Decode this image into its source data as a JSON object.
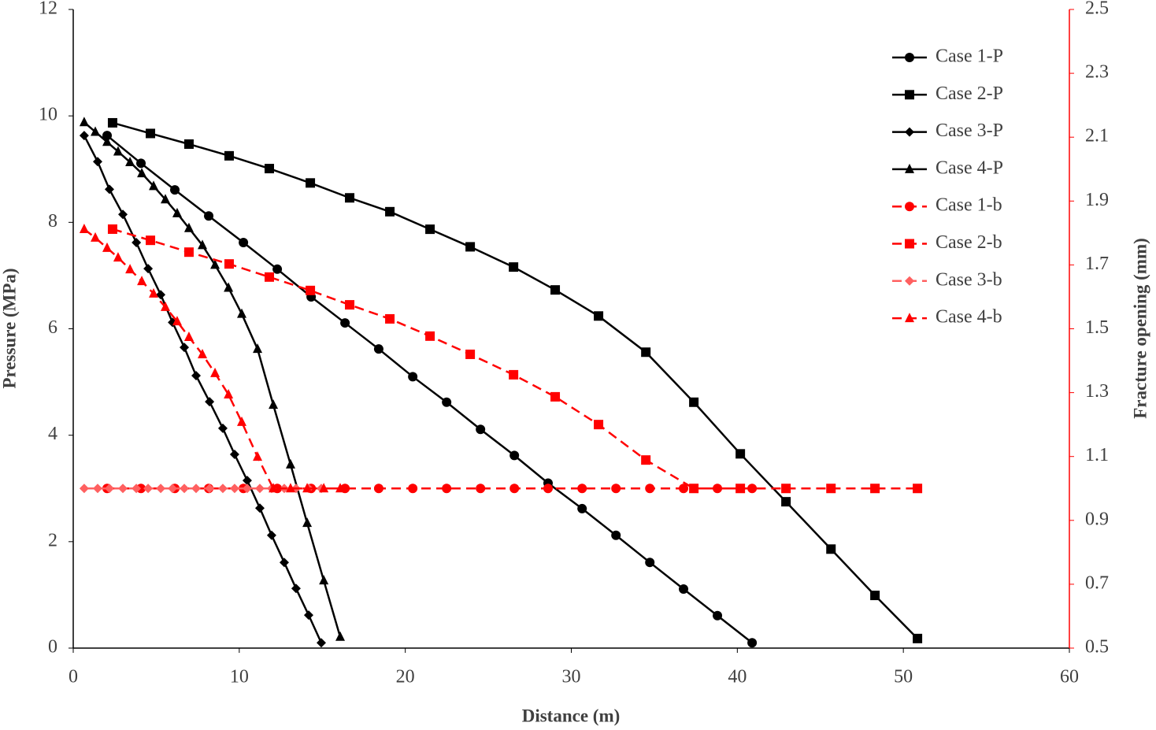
{
  "chart_data": {
    "type": "line",
    "xlabel": "Distance (m)",
    "ylabel": "Pressure (MPa)",
    "y2label": "Fracture opening (mm)",
    "xlim": [
      0,
      60
    ],
    "xticks": [
      0,
      10,
      20,
      30,
      40,
      50,
      60
    ],
    "ylim": [
      0,
      12
    ],
    "yticks": [
      0,
      2,
      4,
      6,
      8,
      10,
      12
    ],
    "y2lim": [
      0.5,
      2.5
    ],
    "y2ticks": [
      0.5,
      0.7,
      0.9,
      1.1,
      1.3,
      1.5,
      1.7,
      1.9,
      2.1,
      2.3,
      2.5
    ],
    "y2color": "#ff0000",
    "legend": "upper right",
    "series": [
      {
        "name": "Case 1-P",
        "color": "#000000",
        "marker": "circle",
        "linestyle": "solid",
        "x": [
          2.04,
          4.08,
          6.12,
          8.16,
          10.25,
          12.29,
          14.33,
          16.37,
          18.4,
          20.45,
          22.49,
          24.53,
          26.57,
          28.6,
          30.65,
          32.69,
          34.73,
          36.76,
          38.8,
          40.89
        ],
        "values": [
          9.63,
          9.11,
          8.61,
          8.12,
          7.62,
          7.12,
          6.6,
          6.11,
          5.62,
          5.1,
          4.62,
          4.11,
          3.62,
          3.1,
          2.62,
          2.12,
          1.61,
          1.11,
          0.61,
          0.1
        ]
      },
      {
        "name": "Case 2-P",
        "color": "#000000",
        "marker": "square",
        "linestyle": "solid",
        "x": [
          2.37,
          4.65,
          6.97,
          9.39,
          11.81,
          14.28,
          16.65,
          19.07,
          21.49,
          23.91,
          26.52,
          29.03,
          31.64,
          34.49,
          37.38,
          40.18,
          42.93,
          45.64,
          48.29,
          50.85
        ],
        "values": [
          9.87,
          9.67,
          9.47,
          9.25,
          9.01,
          8.74,
          8.46,
          8.2,
          7.87,
          7.54,
          7.16,
          6.73,
          6.24,
          5.56,
          4.62,
          3.65,
          2.75,
          1.86,
          0.99,
          0.18
        ]
      },
      {
        "name": "Case 3-P",
        "color": "#000000",
        "marker": "diamond",
        "linestyle": "solid",
        "x": [
          0.66,
          1.47,
          2.18,
          2.99,
          3.8,
          4.51,
          5.27,
          5.98,
          6.69,
          7.4,
          8.21,
          9.01,
          9.72,
          10.48,
          11.24,
          11.95,
          12.71,
          13.42,
          14.18,
          14.94
        ],
        "values": [
          9.63,
          9.14,
          8.62,
          8.15,
          7.62,
          7.13,
          6.64,
          6.12,
          5.65,
          5.12,
          4.63,
          4.13,
          3.64,
          3.15,
          2.63,
          2.12,
          1.61,
          1.12,
          0.62,
          0.1
        ]
      },
      {
        "name": "Case 4-P",
        "color": "#000000",
        "marker": "triangle",
        "linestyle": "solid",
        "x": [
          0.66,
          1.33,
          2.04,
          2.7,
          3.42,
          4.13,
          4.84,
          5.55,
          6.26,
          6.97,
          7.78,
          8.54,
          9.35,
          10.15,
          11.1,
          12.05,
          13.09,
          14.09,
          15.09,
          16.08
        ],
        "values": [
          9.88,
          9.7,
          9.51,
          9.33,
          9.13,
          8.92,
          8.68,
          8.43,
          8.17,
          7.89,
          7.57,
          7.2,
          6.77,
          6.28,
          5.62,
          4.57,
          3.45,
          2.35,
          1.27,
          0.21
        ]
      },
      {
        "name": "Case 1-b",
        "color": "#ff0000",
        "marker": "circle",
        "linestyle": "dashed",
        "axis": "y2",
        "x": [
          2.04,
          4.08,
          6.12,
          8.16,
          10.25,
          12.29,
          14.33,
          16.37,
          18.4,
          20.45,
          22.49,
          24.53,
          26.57,
          28.6,
          30.65,
          32.69,
          34.73,
          36.76,
          38.8,
          40.89
        ],
        "values": [
          1.0,
          1.0,
          1.0,
          1.0,
          1.0,
          1.0,
          1.0,
          1.0,
          1.0,
          1.0,
          1.0,
          1.0,
          1.0,
          1.0,
          1.0,
          1.0,
          1.0,
          1.0,
          1.0,
          1.0
        ]
      },
      {
        "name": "Case 2-b",
        "color": "#ff0000",
        "marker": "square",
        "linestyle": "dashed",
        "axis": "y2",
        "x": [
          2.37,
          4.65,
          6.97,
          9.39,
          11.81,
          14.28,
          16.65,
          19.07,
          21.49,
          23.91,
          26.52,
          29.03,
          31.64,
          34.49,
          37.38,
          40.18,
          42.93,
          45.64,
          48.29,
          50.85
        ],
        "values": [
          1.812,
          1.777,
          1.74,
          1.703,
          1.662,
          1.62,
          1.575,
          1.531,
          1.477,
          1.42,
          1.356,
          1.287,
          1.2,
          1.089,
          1.0,
          1.0,
          1.0,
          1.0,
          1.0,
          1.0
        ]
      },
      {
        "name": "Case 3-b",
        "color": "#ff6060",
        "marker": "diamond",
        "linestyle": "dashed",
        "axis": "y2",
        "x": [
          0.66,
          1.47,
          2.18,
          2.99,
          3.8,
          4.51,
          5.27,
          5.98,
          6.69,
          7.4,
          8.21,
          9.01,
          9.72,
          10.48,
          11.24,
          11.95,
          12.71,
          13.42,
          14.18,
          14.94
        ],
        "values": [
          1.0,
          1.0,
          1.0,
          1.0,
          1.0,
          1.0,
          1.0,
          1.0,
          1.0,
          1.0,
          1.0,
          1.0,
          1.0,
          1.0,
          1.0,
          1.0,
          1.0,
          1.0,
          1.0,
          1.0
        ]
      },
      {
        "name": "Case 4-b",
        "color": "#ff0000",
        "marker": "triangle",
        "linestyle": "dashed",
        "axis": "y2",
        "x": [
          0.66,
          1.33,
          2.04,
          2.7,
          3.42,
          4.13,
          4.84,
          5.55,
          6.26,
          6.97,
          7.78,
          8.54,
          9.35,
          10.15,
          11.1,
          12.05,
          13.09,
          14.09,
          15.09,
          16.08
        ],
        "values": [
          1.812,
          1.785,
          1.753,
          1.723,
          1.686,
          1.649,
          1.61,
          1.568,
          1.523,
          1.474,
          1.42,
          1.361,
          1.294,
          1.208,
          1.099,
          1.0,
          1.0,
          1.0,
          1.0,
          1.0
        ]
      }
    ]
  }
}
